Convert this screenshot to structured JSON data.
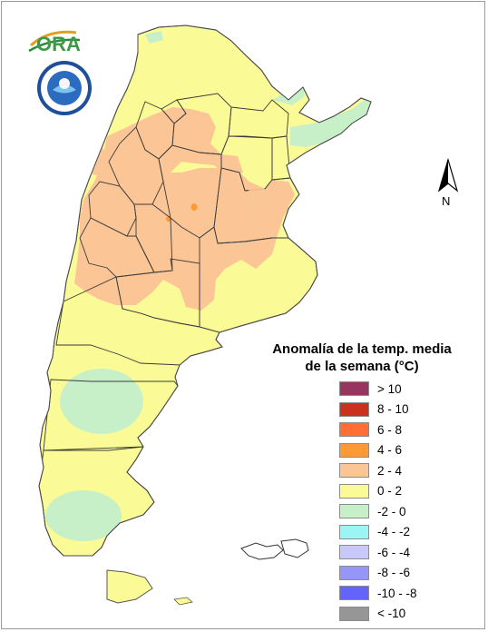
{
  "legend": {
    "title_line1": "Anomalía de la temp. media",
    "title_line2": "de la semana (°C)",
    "classes": [
      {
        "label": "> 10",
        "color": "#96355f"
      },
      {
        "label": "8 - 10",
        "color": "#c8321e"
      },
      {
        "label": "6 - 8",
        "color": "#ff6e32"
      },
      {
        "label": "4 - 6",
        "color": "#ff9933"
      },
      {
        "label": "2 - 4",
        "color": "#fbc596"
      },
      {
        "label": "0 - 2",
        "color": "#fafa96"
      },
      {
        "label": "-2 - 0",
        "color": "#c8f0c8"
      },
      {
        "label": "-4 - -2",
        "color": "#9bf5f5"
      },
      {
        "label": "-6 - -4",
        "color": "#c8c8fa"
      },
      {
        "label": "-8 - -6",
        "color": "#9696fa"
      },
      {
        "label": "-10 - -8",
        "color": "#6464fa"
      },
      {
        "label": "< -10",
        "color": "#969696"
      }
    ]
  },
  "north_arrow": {
    "label": "N"
  },
  "logos": {
    "ora": "ORA"
  },
  "map": {
    "base_color": "#fafa96",
    "warm_color": "#fbc596",
    "cool_color": "#c8f0c8",
    "hot_spot_color": "#ff9933",
    "border_color": "#3c3c3c"
  }
}
